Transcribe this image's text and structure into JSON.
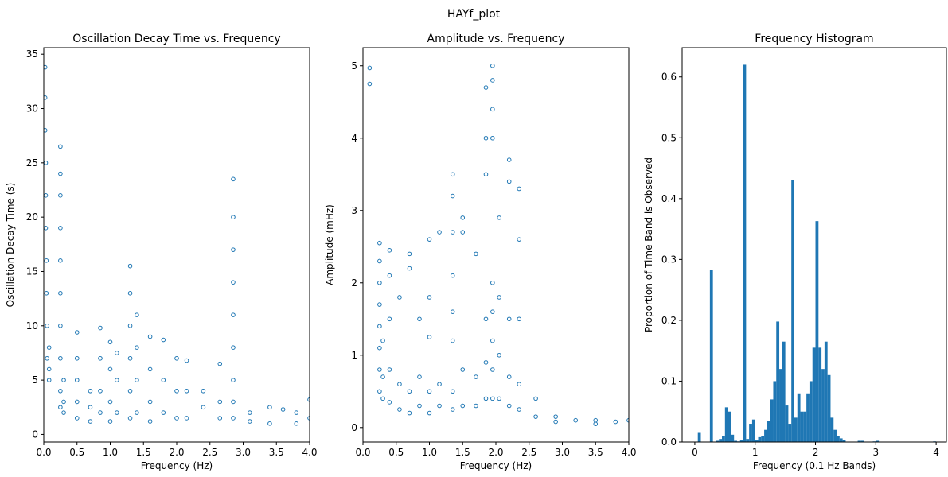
{
  "title": "HAYf_plot",
  "chart_data": [
    {
      "type": "scatter",
      "title": "Oscillation Decay Time vs. Frequency",
      "x_label": "Frequency (Hz)",
      "y_label": "Oscillation Decay Time (s)",
      "color": "#1f77b4",
      "x": [
        0.02,
        0.02,
        0.02,
        0.03,
        0.03,
        0.03,
        0.04,
        0.04,
        0.05,
        0.05,
        0.08,
        0.08,
        0.08,
        0.25,
        0.25,
        0.25,
        0.25,
        0.25,
        0.25,
        0.25,
        0.25,
        0.25,
        0.25,
        0.3,
        0.3,
        0.3,
        0.5,
        0.5,
        0.5,
        0.5,
        0.5,
        0.7,
        0.7,
        0.7,
        0.85,
        0.85,
        0.85,
        0.85,
        1.0,
        1.0,
        1.0,
        1.0,
        1.1,
        1.1,
        1.1,
        1.3,
        1.3,
        1.3,
        1.3,
        1.3,
        1.3,
        1.4,
        1.4,
        1.4,
        1.4,
        1.6,
        1.6,
        1.6,
        1.6,
        1.8,
        1.8,
        1.8,
        2.0,
        2.0,
        2.0,
        2.15,
        2.15,
        2.15,
        2.4,
        2.4,
        2.65,
        2.65,
        2.65,
        2.85,
        2.85,
        2.85,
        2.85,
        2.85,
        2.85,
        2.85,
        2.85,
        2.85,
        3.1,
        3.1,
        3.4,
        3.4,
        3.6,
        3.8,
        3.8,
        4.0,
        4.0
      ],
      "y": [
        33.8,
        31,
        28,
        25,
        22,
        19,
        16,
        13,
        10,
        7,
        8,
        6,
        5,
        26.5,
        24,
        22,
        19,
        16,
        13,
        10,
        7,
        4,
        2.5,
        3,
        2,
        5,
        9.4,
        7,
        5,
        3,
        1.5,
        4,
        2.5,
        1.2,
        9.8,
        7,
        4,
        2,
        8.5,
        6,
        3,
        1.2,
        7.5,
        5,
        2,
        15.5,
        13,
        10,
        7,
        4,
        1.5,
        11,
        8,
        5,
        2,
        9,
        6,
        3,
        1.2,
        8.7,
        5,
        2,
        7,
        4,
        1.5,
        6.8,
        4,
        1.5,
        4,
        2.5,
        6.5,
        3,
        1.5,
        23.5,
        20,
        17,
        14,
        11,
        8,
        5,
        3,
        1.5,
        2,
        1.2,
        2.5,
        1,
        2.3,
        2,
        1,
        3.2,
        1.5
      ],
      "xlim": [
        0,
        4
      ],
      "ylim": [
        -0.7,
        35.6
      ],
      "xticks": [
        {
          "value": 0,
          "label": "0.0"
        },
        0.5,
        {
          "value": 1,
          "label": "1.0"
        },
        1.5,
        {
          "value": 2,
          "label": "2.0"
        },
        2.5,
        {
          "value": 3,
          "label": "3.0"
        },
        3.5,
        {
          "value": 4,
          "label": "4.0"
        }
      ],
      "yticks": [
        0,
        5,
        10,
        15,
        20,
        25,
        30,
        35
      ]
    },
    {
      "type": "scatter",
      "title": "Amplitude vs. Frequency",
      "x_label": "Frequency (Hz)",
      "y_label": "Amplitude (mHz)",
      "color": "#1f77b4",
      "x": [
        0.1,
        0.1,
        0.25,
        0.25,
        0.25,
        0.25,
        0.25,
        0.25,
        0.25,
        0.25,
        0.3,
        0.3,
        0.3,
        0.4,
        0.4,
        0.4,
        0.4,
        0.4,
        0.55,
        0.55,
        0.55,
        0.7,
        0.7,
        0.7,
        0.7,
        0.85,
        0.85,
        0.85,
        1.0,
        1.0,
        1.0,
        1.0,
        1.0,
        1.15,
        1.15,
        1.15,
        1.35,
        1.35,
        1.35,
        1.35,
        1.35,
        1.35,
        1.35,
        1.35,
        1.5,
        1.5,
        1.5,
        1.5,
        1.7,
        1.7,
        1.7,
        1.85,
        1.85,
        1.85,
        1.85,
        1.85,
        1.85,
        1.95,
        1.95,
        1.95,
        1.95,
        1.95,
        1.95,
        1.95,
        1.95,
        1.95,
        2.05,
        2.05,
        2.05,
        2.05,
        2.2,
        2.2,
        2.2,
        2.2,
        2.2,
        2.35,
        2.35,
        2.35,
        2.35,
        2.35,
        2.6,
        2.6,
        2.9,
        2.9,
        3.2,
        3.5,
        3.5,
        3.8,
        4.0
      ],
      "y": [
        4.97,
        4.75,
        2.55,
        2.3,
        2,
        1.7,
        1.4,
        1.1,
        0.8,
        0.5,
        1.2,
        0.7,
        0.4,
        2.45,
        2.1,
        1.5,
        0.8,
        0.35,
        1.8,
        0.6,
        0.25,
        2.4,
        2.2,
        0.5,
        0.2,
        1.5,
        0.7,
        0.3,
        2.6,
        1.8,
        1.25,
        0.5,
        0.2,
        2.7,
        0.6,
        0.3,
        3.5,
        3.2,
        2.7,
        2.1,
        1.6,
        1.2,
        0.5,
        0.25,
        2.9,
        2.7,
        0.8,
        0.3,
        2.4,
        0.7,
        0.3,
        4.7,
        4.0,
        3.5,
        1.5,
        0.9,
        0.4,
        5.0,
        4.8,
        4.4,
        4.0,
        2.0,
        1.6,
        1.2,
        0.8,
        0.4,
        2.9,
        1.8,
        1.0,
        0.4,
        3.7,
        3.4,
        1.5,
        0.7,
        0.3,
        3.3,
        2.6,
        1.5,
        0.6,
        0.25,
        0.4,
        0.15,
        0.15,
        0.08,
        0.1,
        0.1,
        0.05,
        0.08,
        0.1
      ],
      "xlim": [
        0,
        4
      ],
      "ylim": [
        -0.2,
        5.25
      ],
      "xticks": [
        {
          "value": 0,
          "label": "0.0"
        },
        0.5,
        {
          "value": 1,
          "label": "1.0"
        },
        1.5,
        {
          "value": 2,
          "label": "2.0"
        },
        2.5,
        {
          "value": 3,
          "label": "3.0"
        },
        3.5,
        {
          "value": 4,
          "label": "4.0"
        }
      ],
      "yticks": [
        0,
        1,
        2,
        3,
        4,
        5
      ]
    },
    {
      "type": "histogram",
      "title": "Frequency Histogram",
      "x_label": "Frequency (0.1 Hz Bands)",
      "y_label": "Proportion of Time Band is Observed",
      "color": "#1f77b4",
      "bins": [
        0,
        0.05,
        0.1,
        0.15,
        0.2,
        0.25,
        0.3,
        0.35,
        0.4,
        0.45,
        0.5,
        0.55,
        0.6,
        0.65,
        0.7,
        0.75,
        0.8,
        0.85,
        0.9,
        0.95,
        1.0,
        1.05,
        1.1,
        1.15,
        1.2,
        1.25,
        1.3,
        1.35,
        1.4,
        1.45,
        1.5,
        1.55,
        1.6,
        1.65,
        1.7,
        1.75,
        1.8,
        1.85,
        1.9,
        1.95,
        2.0,
        2.05,
        2.1,
        2.15,
        2.2,
        2.25,
        2.3,
        2.35,
        2.4,
        2.45,
        2.5,
        2.55,
        2.6,
        2.65,
        2.7,
        2.75,
        2.8,
        2.85,
        2.9,
        2.95,
        3.0,
        3.05,
        3.1,
        3.15,
        3.2,
        3.25,
        3.3,
        3.35,
        3.4,
        3.45,
        3.5,
        3.55,
        3.6,
        3.65,
        3.7,
        3.75,
        3.8,
        3.85,
        3.9,
        3.95,
        4.0,
        4.05,
        4.1
      ],
      "values": [
        0,
        0.015,
        0,
        0,
        0,
        0.283,
        0,
        0.002,
        0.005,
        0.01,
        0.057,
        0.05,
        0.012,
        0.002,
        0.001,
        0.003,
        0.62,
        0.005,
        0.03,
        0.037,
        0.003,
        0.008,
        0.01,
        0.02,
        0.035,
        0.07,
        0.1,
        0.198,
        0.12,
        0.165,
        0.06,
        0.03,
        0.43,
        0.04,
        0.08,
        0.05,
        0.05,
        0.08,
        0.1,
        0.155,
        0.363,
        0.155,
        0.12,
        0.165,
        0.11,
        0.04,
        0.02,
        0.01,
        0.006,
        0.003,
        0,
        0,
        0,
        0,
        0.002,
        0.002,
        0,
        0,
        0,
        0.001,
        0.002,
        0,
        0,
        0,
        0,
        0,
        0,
        0,
        0,
        0,
        0,
        0,
        0,
        0,
        0,
        0,
        0,
        0,
        0,
        0.001,
        0,
        0
      ],
      "xlim": [
        -0.21,
        4.17
      ],
      "ylim": [
        0,
        0.648
      ],
      "xticks": [
        0,
        1,
        2,
        3,
        4
      ],
      "yticks": [
        {
          "value": 0,
          "label": "0.0"
        },
        0.1,
        0.2,
        0.3,
        0.4,
        0.5,
        0.6
      ]
    }
  ]
}
